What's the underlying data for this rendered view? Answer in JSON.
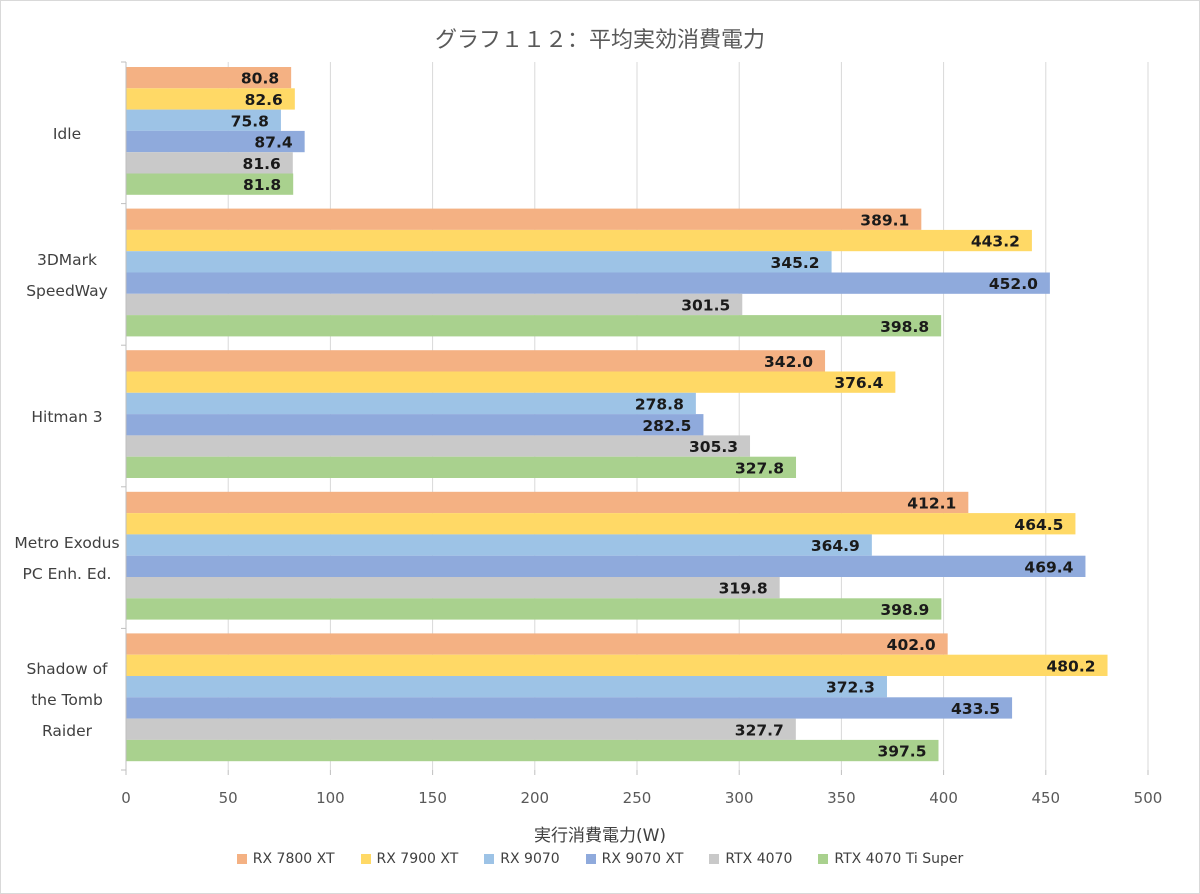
{
  "chart_data": {
    "type": "bar",
    "orientation": "horizontal",
    "title": "グラフ１１２：平均実効消費電力",
    "xlabel": "実行消費電力(W)",
    "ylabel": "",
    "xlim": [
      0,
      500
    ],
    "x_ticks": [
      0,
      50,
      100,
      150,
      200,
      250,
      300,
      350,
      400,
      450,
      500
    ],
    "grid": true,
    "legend_position": "bottom",
    "categories": [
      [
        "Idle"
      ],
      [
        "3DMark",
        "SpeedWay"
      ],
      [
        "Hitman 3"
      ],
      [
        "Metro Exodus",
        "PC Enh. Ed."
      ],
      [
        "Shadow of",
        "the Tomb",
        "Raider"
      ]
    ],
    "series": [
      {
        "name": "RX 7800 XT",
        "color": "#f4b183",
        "values": [
          80.8,
          389.1,
          342.0,
          412.1,
          402.0
        ]
      },
      {
        "name": "RX 7900 XT",
        "color": "#ffd966",
        "values": [
          82.6,
          443.2,
          376.4,
          464.5,
          480.2
        ]
      },
      {
        "name": "RX 9070",
        "color": "#9dc3e6",
        "values": [
          75.8,
          345.2,
          278.8,
          364.9,
          372.3
        ]
      },
      {
        "name": "RX 9070 XT",
        "color": "#8faadc",
        "values": [
          87.4,
          452.0,
          282.5,
          469.4,
          433.5
        ]
      },
      {
        "name": "RTX 4070",
        "color": "#c9c9c9",
        "values": [
          81.6,
          301.5,
          305.3,
          319.8,
          327.7
        ]
      },
      {
        "name": "RTX 4070 Ti Super",
        "color": "#a9d18e",
        "values": [
          81.8,
          398.8,
          327.8,
          398.9,
          397.5
        ]
      }
    ],
    "label_decimals": 1
  }
}
